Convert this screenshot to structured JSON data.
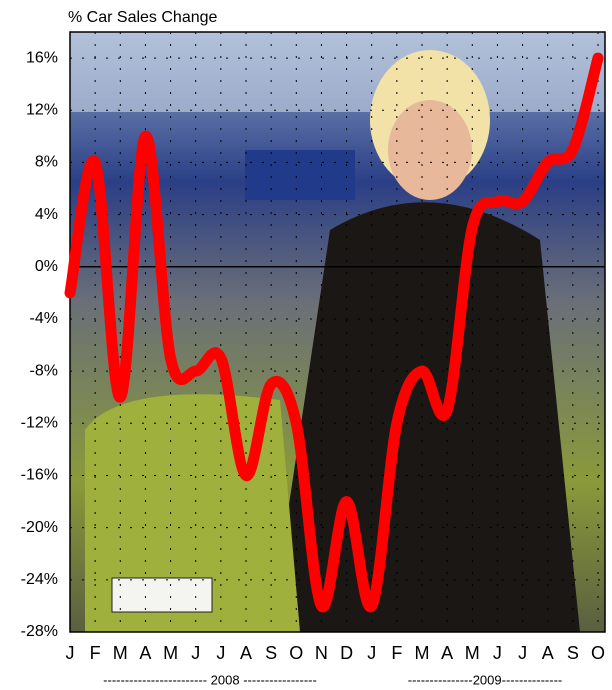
{
  "chart_data": {
    "type": "line",
    "title": "% Car Sales Change",
    "categories": [
      "J",
      "F",
      "M",
      "A",
      "M",
      "J",
      "J",
      "A",
      "S",
      "O",
      "N",
      "D",
      "J",
      "F",
      "M",
      "A",
      "M",
      "J",
      "J",
      "A",
      "S",
      "O"
    ],
    "series": [
      {
        "name": "% Car Sales Change",
        "color": "#ff0000",
        "values": [
          -2,
          8,
          -10,
          10,
          -7,
          -8,
          -7,
          -16,
          -9,
          -12,
          -26,
          -18,
          -26,
          -12,
          -8,
          -11,
          3,
          5,
          5,
          8,
          9,
          16
        ]
      }
    ],
    "ylim": [
      -28,
      18
    ],
    "yticks": [
      {
        "value": -28,
        "label": "-28%"
      },
      {
        "value": -24,
        "label": "-24%"
      },
      {
        "value": -20,
        "label": "-20%"
      },
      {
        "value": -16,
        "label": "-16%"
      },
      {
        "value": -12,
        "label": "-12%"
      },
      {
        "value": -8,
        "label": "-8%"
      },
      {
        "value": -4,
        "label": "-4%"
      },
      {
        "value": 0,
        "label": "0%"
      },
      {
        "value": 4,
        "label": "4%"
      },
      {
        "value": 8,
        "label": "8%"
      },
      {
        "value": 12,
        "label": "12%"
      },
      {
        "value": 16,
        "label": "16%"
      }
    ],
    "grid": true,
    "annotations": [
      "------------------------ 2008 -----------------",
      "---------------2009--------------"
    ]
  }
}
